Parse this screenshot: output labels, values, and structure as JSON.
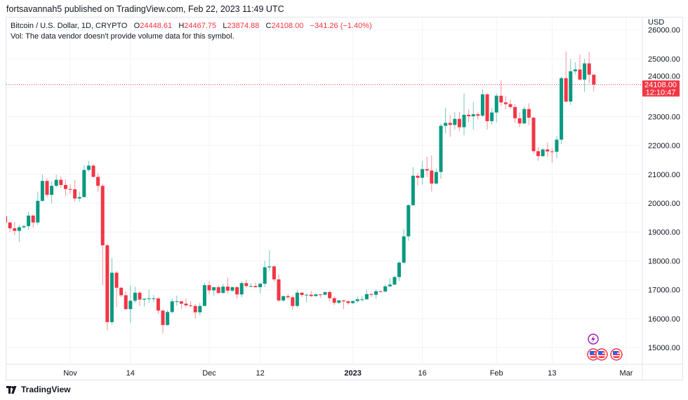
{
  "header": {
    "published": "fortsavannah5 published on TradingView.com, Feb 22, 2023 11:49 UTC"
  },
  "legend": {
    "symbol": "Bitcoin / U.S. Dollar, 1D, CRYPTO",
    "o_label": "O",
    "o_value": "24448.61",
    "h_label": "H",
    "h_value": "24467.75",
    "l_label": "L",
    "l_value": "23874.88",
    "c_label": "C",
    "c_value": "24108.00",
    "change": "−341.26 (−1.40%)",
    "volume_note": "Vol: The data vendor doesn't provide volume data for this symbol."
  },
  "footer": {
    "brand": "TradingView",
    "logo_icon": "tradingview-logo-icon"
  },
  "events": {
    "lightning_icon": "lightning-event-icon",
    "flag_icon": "us-flag-event-icon",
    "flag_count": 3
  },
  "chart_data": {
    "type": "candlestick",
    "currency": "USD",
    "last_price_label": "24108.00",
    "countdown": "12:10:47",
    "up_color": "#089981",
    "down_color": "#f23645",
    "ylim": [
      14420,
      26430
    ],
    "y_ticks": [
      "15000.00",
      "16000.00",
      "17000.00",
      "18000.00",
      "19000.00",
      "20000.00",
      "21000.00",
      "22000.00",
      "23000.00",
      "24000.00",
      "25000.00",
      "26000.00"
    ],
    "x_ticks": [
      {
        "date": "2022-11-01",
        "label": "Nov"
      },
      {
        "date": "2022-11-14",
        "label": "14"
      },
      {
        "date": "2022-12-01",
        "label": "Dec"
      },
      {
        "date": "2022-12-12",
        "label": "12"
      },
      {
        "date": "2023-01-01",
        "label": "2023",
        "bold": true
      },
      {
        "date": "2023-01-16",
        "label": "16"
      },
      {
        "date": "2023-02-01",
        "label": "Feb"
      },
      {
        "date": "2023-02-13",
        "label": "13"
      },
      {
        "date": "2023-03-01",
        "label": "Mar"
      }
    ],
    "grid": true,
    "columns": [
      "date",
      "open",
      "high",
      "low",
      "close"
    ],
    "candles": [
      [
        "2022-10-18",
        19550,
        19700,
        19100,
        19330
      ],
      [
        "2022-10-19",
        19330,
        19350,
        19000,
        19130
      ],
      [
        "2022-10-20",
        19130,
        19350,
        18900,
        19040
      ],
      [
        "2022-10-21",
        19040,
        19250,
        18650,
        19165
      ],
      [
        "2022-10-22",
        19165,
        19240,
        19110,
        19205
      ],
      [
        "2022-10-23",
        19205,
        19700,
        19070,
        19570
      ],
      [
        "2022-10-24",
        19570,
        19600,
        19160,
        19330
      ],
      [
        "2022-10-25",
        19330,
        20400,
        19250,
        20080
      ],
      [
        "2022-10-26",
        20080,
        21000,
        20050,
        20770
      ],
      [
        "2022-10-27",
        20770,
        20870,
        20200,
        20290
      ],
      [
        "2022-10-28",
        20290,
        20750,
        20000,
        20600
      ],
      [
        "2022-10-29",
        20600,
        20980,
        20560,
        20810
      ],
      [
        "2022-10-30",
        20810,
        20930,
        20530,
        20630
      ],
      [
        "2022-10-31",
        20630,
        20830,
        20250,
        20490
      ],
      [
        "2022-11-01",
        20490,
        20650,
        20330,
        20480
      ],
      [
        "2022-11-02",
        20480,
        20800,
        20050,
        20160
      ],
      [
        "2022-11-03",
        20160,
        20400,
        20050,
        20210
      ],
      [
        "2022-11-04",
        20210,
        21300,
        20200,
        21150
      ],
      [
        "2022-11-05",
        21150,
        21470,
        21080,
        21300
      ],
      [
        "2022-11-06",
        21300,
        21350,
        20900,
        20910
      ],
      [
        "2022-11-07",
        20910,
        21050,
        20400,
        20600
      ],
      [
        "2022-11-08",
        20600,
        20670,
        17150,
        18540
      ],
      [
        "2022-11-09",
        18540,
        18600,
        15600,
        15880
      ],
      [
        "2022-11-10",
        15880,
        18100,
        15780,
        17590
      ],
      [
        "2022-11-11",
        17590,
        17650,
        16400,
        17070
      ],
      [
        "2022-11-12",
        17070,
        17100,
        16750,
        16810
      ],
      [
        "2022-11-13",
        16810,
        16950,
        16300,
        16330
      ],
      [
        "2022-11-14",
        16330,
        17150,
        15850,
        16620
      ],
      [
        "2022-11-15",
        16620,
        17100,
        16550,
        16900
      ],
      [
        "2022-11-16",
        16900,
        16950,
        16430,
        16660
      ],
      [
        "2022-11-17",
        16660,
        16700,
        16420,
        16690
      ],
      [
        "2022-11-18",
        16690,
        17000,
        16550,
        16700
      ],
      [
        "2022-11-19",
        16700,
        16820,
        16570,
        16700
      ],
      [
        "2022-11-20",
        16700,
        16750,
        16170,
        16280
      ],
      [
        "2022-11-21",
        16280,
        16300,
        15480,
        15780
      ],
      [
        "2022-11-22",
        15780,
        16300,
        15750,
        16230
      ],
      [
        "2022-11-23",
        16230,
        16700,
        16170,
        16600
      ],
      [
        "2022-11-24",
        16600,
        16800,
        16450,
        16600
      ],
      [
        "2022-11-25",
        16600,
        16600,
        16340,
        16520
      ],
      [
        "2022-11-26",
        16520,
        16700,
        16400,
        16460
      ],
      [
        "2022-11-27",
        16460,
        16600,
        16400,
        16440
      ],
      [
        "2022-11-28",
        16440,
        16500,
        16000,
        16220
      ],
      [
        "2022-11-29",
        16220,
        16550,
        16110,
        16440
      ],
      [
        "2022-11-30",
        16440,
        17250,
        16430,
        17160
      ],
      [
        "2022-12-01",
        17160,
        17300,
        16850,
        16980
      ],
      [
        "2022-12-02",
        16980,
        17100,
        16800,
        17090
      ],
      [
        "2022-12-03",
        17090,
        17150,
        16860,
        16890
      ],
      [
        "2022-12-04",
        16890,
        17200,
        16880,
        17110
      ],
      [
        "2022-12-05",
        17110,
        17420,
        16870,
        16970
      ],
      [
        "2022-12-06",
        16970,
        17110,
        16920,
        17090
      ],
      [
        "2022-12-07",
        17090,
        17130,
        16700,
        16840
      ],
      [
        "2022-12-08",
        16840,
        17300,
        16740,
        17230
      ],
      [
        "2022-12-09",
        17230,
        17350,
        17080,
        17130
      ],
      [
        "2022-12-10",
        17130,
        17230,
        17090,
        17130
      ],
      [
        "2022-12-11",
        17130,
        17260,
        17070,
        17090
      ],
      [
        "2022-12-12",
        17090,
        17240,
        16880,
        17210
      ],
      [
        "2022-12-13",
        17210,
        18000,
        17090,
        17780
      ],
      [
        "2022-12-14",
        17780,
        18370,
        17670,
        17810
      ],
      [
        "2022-12-15",
        17810,
        17840,
        17280,
        17360
      ],
      [
        "2022-12-16",
        17360,
        17530,
        16580,
        16630
      ],
      [
        "2022-12-17",
        16630,
        16800,
        16590,
        16780
      ],
      [
        "2022-12-18",
        16780,
        16860,
        16660,
        16740
      ],
      [
        "2022-12-19",
        16740,
        16820,
        16300,
        16440
      ],
      [
        "2022-12-20",
        16440,
        17000,
        16400,
        16900
      ],
      [
        "2022-12-21",
        16900,
        16900,
        16750,
        16820
      ],
      [
        "2022-12-22",
        16820,
        16870,
        16570,
        16830
      ],
      [
        "2022-12-23",
        16830,
        16960,
        16760,
        16780
      ],
      [
        "2022-12-24",
        16780,
        16870,
        16770,
        16840
      ],
      [
        "2022-12-25",
        16840,
        16860,
        16730,
        16830
      ],
      [
        "2022-12-26",
        16830,
        16940,
        16800,
        16920
      ],
      [
        "2022-12-27",
        16920,
        16970,
        16590,
        16710
      ],
      [
        "2022-12-28",
        16710,
        16780,
        16470,
        16550
      ],
      [
        "2022-12-29",
        16550,
        16650,
        16500,
        16630
      ],
      [
        "2022-12-30",
        16630,
        16650,
        16330,
        16600
      ],
      [
        "2022-12-31",
        16600,
        16640,
        16480,
        16540
      ],
      [
        "2023-01-01",
        16540,
        16630,
        16500,
        16610
      ],
      [
        "2023-01-02",
        16610,
        16780,
        16550,
        16670
      ],
      [
        "2023-01-03",
        16670,
        16780,
        16600,
        16670
      ],
      [
        "2023-01-04",
        16670,
        17000,
        16650,
        16850
      ],
      [
        "2023-01-05",
        16850,
        16880,
        16750,
        16830
      ],
      [
        "2023-01-06",
        16830,
        17020,
        16680,
        16950
      ],
      [
        "2023-01-07",
        16950,
        16970,
        16900,
        16940
      ],
      [
        "2023-01-08",
        16940,
        17180,
        16910,
        17120
      ],
      [
        "2023-01-09",
        17120,
        17400,
        17100,
        17180
      ],
      [
        "2023-01-10",
        17180,
        17500,
        17150,
        17440
      ],
      [
        "2023-01-11",
        17440,
        17990,
        17300,
        17940
      ],
      [
        "2023-01-12",
        17940,
        19100,
        17900,
        18850
      ],
      [
        "2023-01-13",
        18850,
        19970,
        18700,
        19930
      ],
      [
        "2023-01-14",
        19930,
        21250,
        19900,
        20950
      ],
      [
        "2023-01-15",
        20950,
        21050,
        20600,
        20880
      ],
      [
        "2023-01-16",
        20880,
        21450,
        20650,
        21180
      ],
      [
        "2023-01-17",
        21180,
        21600,
        20900,
        21130
      ],
      [
        "2023-01-18",
        21130,
        21650,
        20400,
        20680
      ],
      [
        "2023-01-19",
        20680,
        21200,
        20650,
        21080
      ],
      [
        "2023-01-20",
        21080,
        22750,
        20850,
        22680
      ],
      [
        "2023-01-21",
        22680,
        23300,
        22420,
        22780
      ],
      [
        "2023-01-22",
        22780,
        23050,
        22300,
        22710
      ],
      [
        "2023-01-23",
        22710,
        23150,
        22550,
        22920
      ],
      [
        "2023-01-24",
        22920,
        23150,
        22500,
        22630
      ],
      [
        "2023-01-25",
        22630,
        23800,
        22350,
        23060
      ],
      [
        "2023-01-26",
        23060,
        23250,
        22800,
        23010
      ],
      [
        "2023-01-27",
        23010,
        23500,
        22550,
        23080
      ],
      [
        "2023-01-28",
        23080,
        23150,
        22900,
        23030
      ],
      [
        "2023-01-29",
        23030,
        23950,
        22990,
        23770
      ],
      [
        "2023-01-30",
        23770,
        23800,
        22550,
        22840
      ],
      [
        "2023-01-31",
        22840,
        23300,
        22720,
        23140
      ],
      [
        "2023-02-01",
        23140,
        23800,
        22800,
        23720
      ],
      [
        "2023-02-02",
        23720,
        24250,
        23370,
        23490
      ],
      [
        "2023-02-03",
        23490,
        23700,
        23250,
        23430
      ],
      [
        "2023-02-04",
        23430,
        23590,
        23270,
        23330
      ],
      [
        "2023-02-05",
        23330,
        23430,
        22780,
        22940
      ],
      [
        "2023-02-06",
        22940,
        23150,
        22640,
        22760
      ],
      [
        "2023-02-07",
        22760,
        23360,
        22750,
        23260
      ],
      [
        "2023-02-08",
        23260,
        23460,
        22700,
        22960
      ],
      [
        "2023-02-09",
        22960,
        23000,
        21700,
        21800
      ],
      [
        "2023-02-10",
        21800,
        21950,
        21470,
        21630
      ],
      [
        "2023-02-11",
        21630,
        21900,
        21600,
        21860
      ],
      [
        "2023-02-12",
        21860,
        22100,
        21600,
        21790
      ],
      [
        "2023-02-13",
        21790,
        21900,
        21400,
        21780
      ],
      [
        "2023-02-14",
        21780,
        22330,
        21550,
        22200
      ],
      [
        "2023-02-15",
        22200,
        24370,
        22050,
        24330
      ],
      [
        "2023-02-16",
        24330,
        25250,
        23500,
        23520
      ],
      [
        "2023-02-17",
        23520,
        24990,
        23400,
        24570
      ],
      [
        "2023-02-18",
        24570,
        24880,
        24460,
        24630
      ],
      [
        "2023-02-19",
        24630,
        25150,
        24250,
        24280
      ],
      [
        "2023-02-20",
        24280,
        25000,
        23860,
        24840
      ],
      [
        "2023-02-21",
        24840,
        25250,
        24150,
        24450
      ],
      [
        "2023-02-22",
        24448.61,
        24467.75,
        23874.88,
        24108
      ]
    ]
  }
}
